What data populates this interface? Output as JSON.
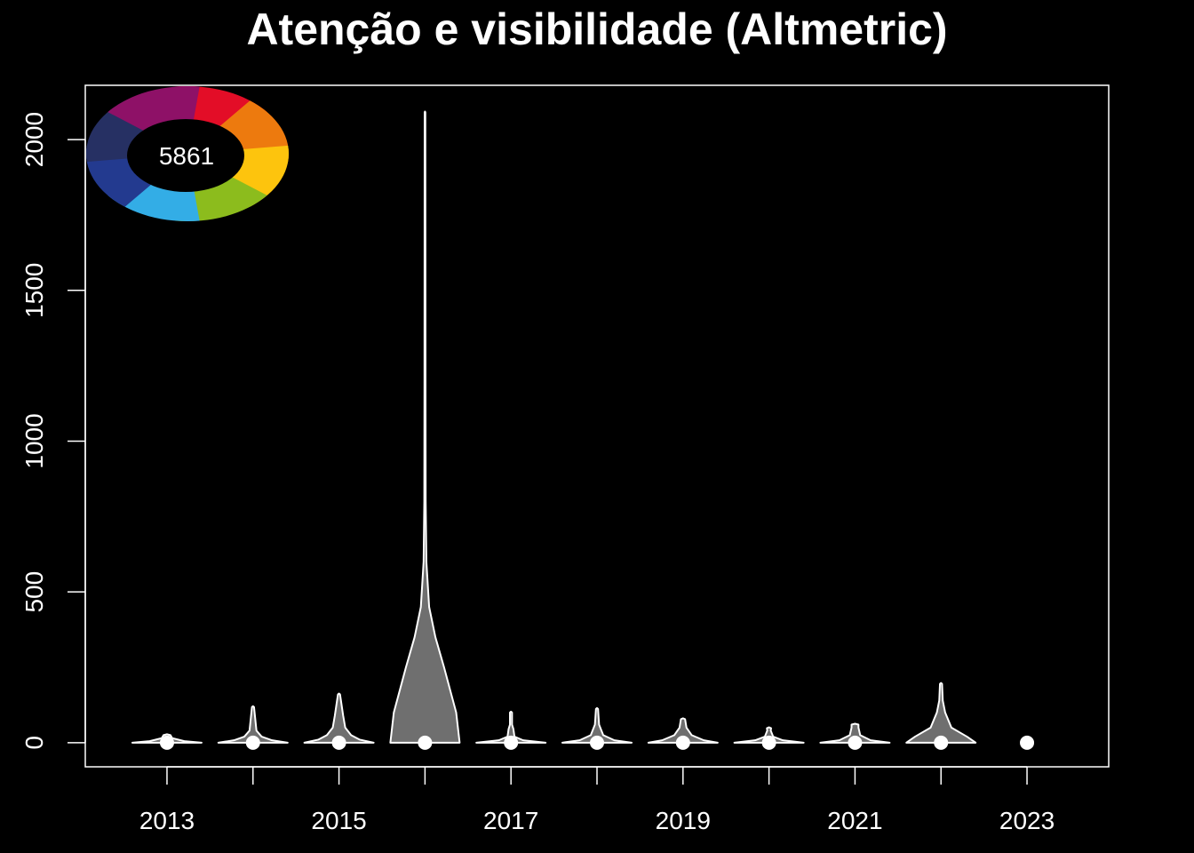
{
  "chart_data": {
    "type": "violin",
    "title": "Atenção e visibilidade (Altmetric)",
    "xlabel": "",
    "ylabel": "",
    "x": [
      2013,
      2014,
      2015,
      2016,
      2017,
      2018,
      2019,
      2020,
      2021,
      2022,
      2023
    ],
    "x_tick_labels": [
      "2013",
      "2015",
      "2017",
      "2019",
      "2021",
      "2023"
    ],
    "x_tick_label_values": [
      2013,
      2015,
      2017,
      2019,
      2021,
      2023
    ],
    "y_tick_labels": [
      "0",
      "500",
      "1000",
      "1500",
      "2000"
    ],
    "y_tick_values": [
      0,
      500,
      1000,
      1500,
      2000
    ],
    "xlim": [
      2012.05,
      2023.95
    ],
    "ylim": [
      -80,
      2180
    ],
    "medians": [
      0,
      0,
      0,
      0,
      0,
      0,
      0,
      0,
      0,
      0,
      0
    ],
    "violins": [
      {
        "year": 2013,
        "max": 25,
        "profile": [
          [
            0,
            1
          ],
          [
            5,
            0.5
          ],
          [
            15,
            0.15
          ],
          [
            25,
            0.1
          ]
        ]
      },
      {
        "year": 2014,
        "max": 118,
        "profile": [
          [
            0,
            1
          ],
          [
            8,
            0.55
          ],
          [
            20,
            0.25
          ],
          [
            40,
            0.1
          ],
          [
            118,
            0.03
          ]
        ]
      },
      {
        "year": 2015,
        "max": 160,
        "profile": [
          [
            0,
            1
          ],
          [
            10,
            0.6
          ],
          [
            25,
            0.35
          ],
          [
            50,
            0.18
          ],
          [
            90,
            0.12
          ],
          [
            160,
            0.03
          ]
        ]
      },
      {
        "year": 2016,
        "max": 2090,
        "profile": [
          [
            0,
            1
          ],
          [
            100,
            0.9
          ],
          [
            250,
            0.55
          ],
          [
            350,
            0.3
          ],
          [
            450,
            0.12
          ],
          [
            600,
            0.04
          ],
          [
            800,
            0.02
          ],
          [
            1200,
            0.015
          ],
          [
            2090,
            0.01
          ]
        ]
      },
      {
        "year": 2017,
        "max": 100,
        "profile": [
          [
            0,
            1
          ],
          [
            8,
            0.35
          ],
          [
            20,
            0.1
          ],
          [
            45,
            0.07
          ],
          [
            60,
            0.03
          ],
          [
            100,
            0.03
          ]
        ]
      },
      {
        "year": 2018,
        "max": 112,
        "profile": [
          [
            0,
            1
          ],
          [
            8,
            0.5
          ],
          [
            25,
            0.18
          ],
          [
            60,
            0.06
          ],
          [
            112,
            0.03
          ]
        ]
      },
      {
        "year": 2019,
        "max": 78,
        "profile": [
          [
            0,
            1
          ],
          [
            8,
            0.6
          ],
          [
            25,
            0.25
          ],
          [
            50,
            0.1
          ],
          [
            78,
            0.06
          ]
        ]
      },
      {
        "year": 2020,
        "max": 48,
        "profile": [
          [
            0,
            1
          ],
          [
            8,
            0.4
          ],
          [
            20,
            0.12
          ],
          [
            40,
            0.05
          ],
          [
            48,
            0.06
          ]
        ]
      },
      {
        "year": 2021,
        "max": 60,
        "profile": [
          [
            0,
            1
          ],
          [
            8,
            0.45
          ],
          [
            25,
            0.15
          ],
          [
            50,
            0.1
          ],
          [
            60,
            0.1
          ]
        ]
      },
      {
        "year": 2022,
        "max": 195,
        "profile": [
          [
            0,
            1
          ],
          [
            20,
            0.75
          ],
          [
            50,
            0.3
          ],
          [
            100,
            0.12
          ],
          [
            140,
            0.05
          ],
          [
            195,
            0.03
          ]
        ]
      },
      {
        "year": 2023,
        "max": 0,
        "profile": []
      }
    ],
    "grid": false,
    "colors": {
      "background": "#000000",
      "violin_fill": "#6f6f6f",
      "violin_stroke": "#ffffff",
      "median_point": "#ffffff",
      "axis": "#ffffff"
    }
  },
  "altmetric_badge": {
    "score": "5861",
    "colors": [
      "#e30d27",
      "#ed7a0e",
      "#fdc40d",
      "#8cbc1d",
      "#33ade6",
      "#233a8f",
      "#263063",
      "#8e1167"
    ]
  }
}
